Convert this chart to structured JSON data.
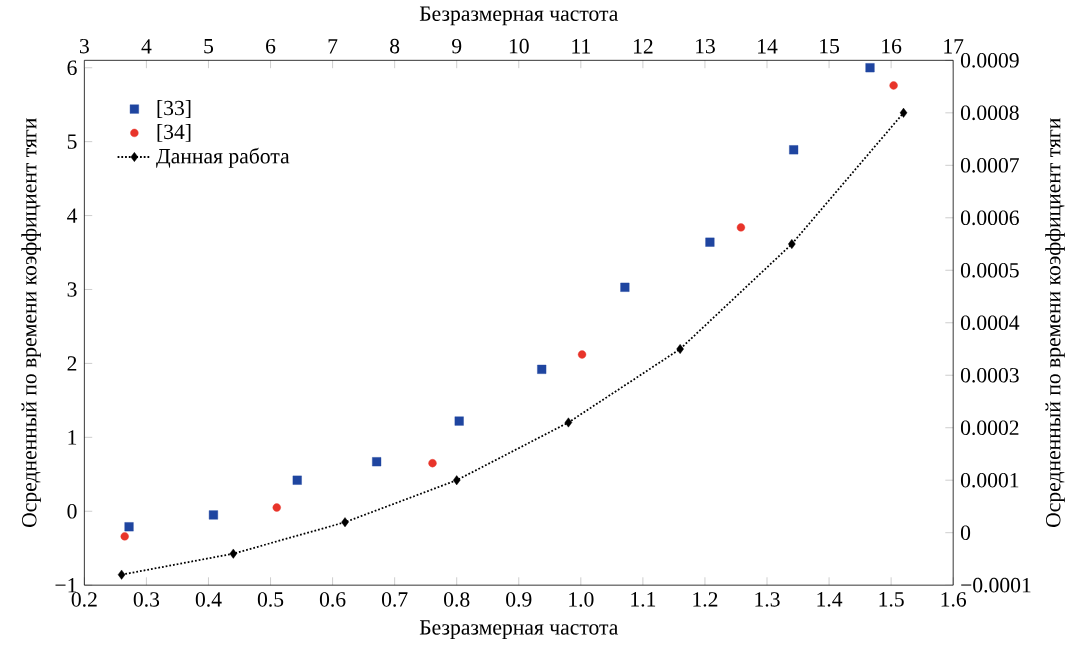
{
  "chart_data": {
    "type": "scatter",
    "xlabel": "Безразмерная частота",
    "x2label": "Безразмерная частота",
    "ylabel": "Осредненный по времени коэффициент тяги",
    "y2label": "Осредненный по времени коэффициент тяги",
    "xlim": [
      0.2,
      1.6
    ],
    "xticks": [
      {
        "value": 0.2,
        "label": "0.2"
      },
      {
        "value": 0.3,
        "label": "0.3"
      },
      {
        "value": 0.4,
        "label": "0.4"
      },
      {
        "value": 0.5,
        "label": "0.5"
      },
      {
        "value": 0.6,
        "label": "0.6"
      },
      {
        "value": 0.7,
        "label": "0.7"
      },
      {
        "value": 0.8,
        "label": "0.8"
      },
      {
        "value": 0.9,
        "label": "0.9"
      },
      {
        "value": 1.0,
        "label": "1.0"
      },
      {
        "value": 1.1,
        "label": "1.1"
      },
      {
        "value": 1.2,
        "label": "1.2"
      },
      {
        "value": 1.3,
        "label": "1.3"
      },
      {
        "value": 1.4,
        "label": "1.4"
      },
      {
        "value": 1.5,
        "label": "1.5"
      },
      {
        "value": 1.6,
        "label": "1.6"
      }
    ],
    "x2lim": [
      3,
      17
    ],
    "x2ticks": [
      3,
      4,
      5,
      6,
      7,
      8,
      9,
      10,
      11,
      12,
      13,
      14,
      15,
      16,
      17
    ],
    "ylim": [
      -1,
      6.1
    ],
    "yticks": [
      {
        "value": -1,
        "label": "−1"
      },
      0,
      1,
      2,
      3,
      4,
      5,
      6
    ],
    "y2lim": [
      -0.0001,
      0.0009
    ],
    "y2ticks": [
      {
        "value": -0.0001,
        "label": "−0.0001"
      },
      {
        "value": 0,
        "label": "0"
      },
      {
        "value": 0.0001,
        "label": "0.0001"
      },
      {
        "value": 0.0002,
        "label": "0.0002"
      },
      {
        "value": 0.0003,
        "label": "0.0003"
      },
      {
        "value": 0.0004,
        "label": "0.0004"
      },
      {
        "value": 0.0005,
        "label": "0.0005"
      },
      {
        "value": 0.0006,
        "label": "0.0006"
      },
      {
        "value": 0.0007,
        "label": "0.0007"
      },
      {
        "value": 0.0008,
        "label": "0.0008"
      },
      {
        "value": 0.0009,
        "label": "0.0009"
      }
    ],
    "legend": "top left",
    "series": [
      {
        "name": "[33]",
        "marker": "square",
        "color": "#1f45a0",
        "x": [
          0.272,
          0.408,
          0.543,
          0.671,
          0.804,
          0.937,
          1.071,
          1.208,
          1.343,
          1.466
        ],
        "values": [
          -0.21,
          -0.05,
          0.42,
          0.67,
          1.22,
          1.92,
          3.03,
          3.64,
          4.89,
          6.0
        ]
      },
      {
        "name": "[34]",
        "marker": "circle",
        "color": "#e8342a",
        "x": [
          0.265,
          0.51,
          0.761,
          1.002,
          1.258,
          1.504
        ],
        "values": [
          -0.34,
          0.05,
          0.65,
          2.12,
          3.84,
          5.76
        ]
      },
      {
        "name": "Данная работа",
        "type": "line",
        "marker": "diamond",
        "line_style": "dotted",
        "color": "#000000",
        "axis": "y2",
        "x": [
          0.26,
          0.44,
          0.62,
          0.8,
          0.98,
          1.16,
          1.34,
          1.52
        ],
        "values": [
          -8e-05,
          -4e-05,
          2e-05,
          0.0001,
          0.00021,
          0.00035,
          0.00055,
          0.0008
        ]
      }
    ]
  }
}
